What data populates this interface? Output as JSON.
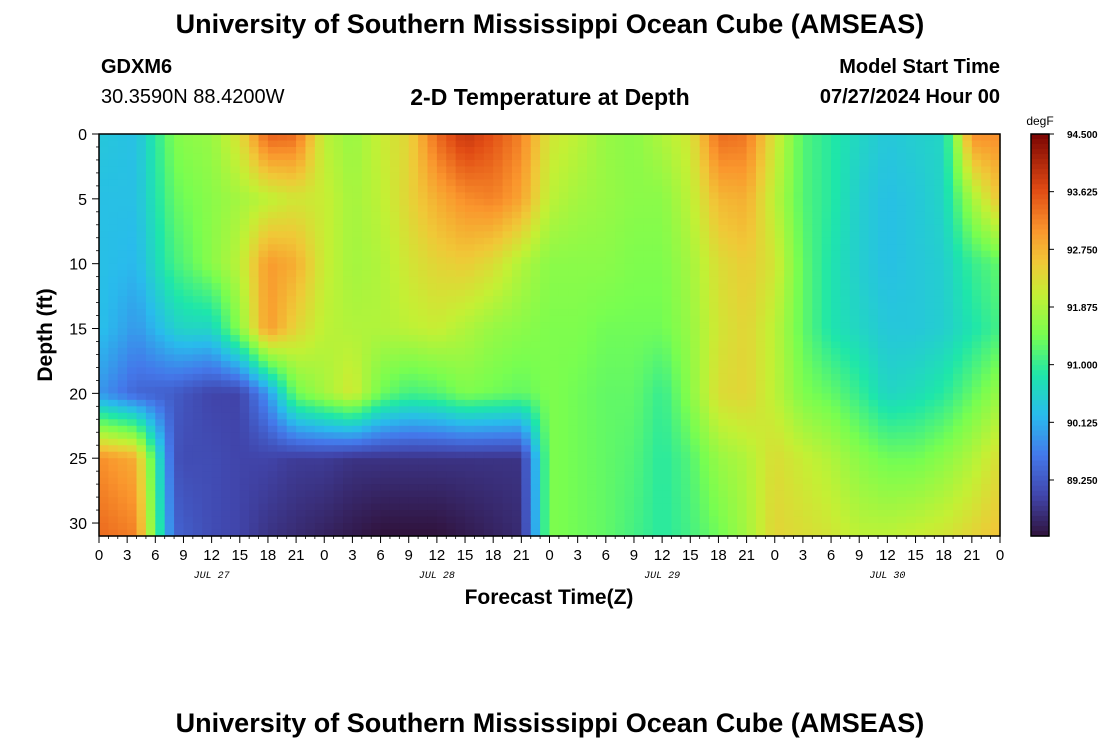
{
  "header": {
    "title": "University of Southern Mississippi Ocean Cube (AMSEAS)",
    "station_name": "GDXM6",
    "station_coords": "30.3590N  88.4200W",
    "subtitle": "2-D Temperature at Depth",
    "model_start_label": "Model Start Time",
    "model_start_value": "07/27/2024 Hour 00"
  },
  "footer": {
    "title": "University of Southern Mississippi Ocean Cube (AMSEAS)"
  },
  "chart_data": {
    "type": "heatmap",
    "title": "2-D Temperature at Depth",
    "xlabel": "Forecast Time(Z)",
    "ylabel": "Depth (ft)",
    "x_unit": "hours from 07/27/2024 00Z",
    "xlim": [
      0,
      96
    ],
    "ylim": [
      0,
      31
    ],
    "y_inverted": true,
    "x_tick_values": [
      0,
      3,
      6,
      9,
      12,
      15,
      18,
      21,
      24,
      27,
      30,
      33,
      36,
      39,
      42,
      45,
      48,
      51,
      54,
      57,
      60,
      63,
      66,
      69,
      72,
      75,
      78,
      81,
      84,
      87,
      90,
      93,
      96
    ],
    "x_tick_labels": [
      "0",
      "3",
      "6",
      "9",
      "12",
      "15",
      "18",
      "21",
      "0",
      "3",
      "6",
      "9",
      "12",
      "15",
      "18",
      "21",
      "0",
      "3",
      "6",
      "9",
      "12",
      "15",
      "18",
      "21",
      "0",
      "3",
      "6",
      "9",
      "12",
      "15",
      "18",
      "21",
      "0"
    ],
    "y_ticks": [
      0,
      5,
      10,
      15,
      20,
      25,
      30
    ],
    "date_labels": [
      {
        "hour": 12,
        "label": "JUL 27"
      },
      {
        "hour": 36,
        "label": "JUL 28"
      },
      {
        "hour": 60,
        "label": "JUL 29"
      },
      {
        "hour": 84,
        "label": "JUL 30"
      }
    ],
    "colorbar": {
      "unit": "degF",
      "min": 88.4,
      "max": 94.5,
      "tick_values": [
        94.5,
        93.625,
        92.75,
        91.875,
        91.0,
        90.125,
        89.25
      ],
      "tick_labels": [
        "94.500",
        "93.625",
        "92.750",
        "91.875",
        "91.000",
        "90.125",
        "89.250"
      ]
    },
    "grid": false,
    "temperature_field": {
      "hours": [
        0,
        4,
        8,
        9,
        12,
        15,
        18,
        21,
        24,
        27,
        30,
        33,
        36,
        39,
        42,
        45,
        48,
        51,
        54,
        57,
        60,
        63,
        66,
        69,
        72,
        75,
        78,
        81,
        84,
        87,
        90,
        93,
        96
      ],
      "depths": [
        0,
        5,
        10,
        15,
        20,
        25,
        31
      ],
      "values": [
        [
          90.4,
          90.3,
          91.5,
          91.6,
          91.7,
          92.3,
          93.5,
          93.4,
          92.0,
          91.7,
          92.1,
          92.4,
          93.4,
          93.9,
          93.6,
          93.2,
          92.2,
          92.0,
          91.7,
          91.6,
          91.9,
          92.2,
          93.4,
          93.3,
          92.2,
          91.2,
          90.9,
          90.6,
          90.4,
          90.5,
          90.6,
          93.1,
          93.1
        ],
        [
          90.3,
          90.3,
          91.3,
          91.4,
          91.6,
          91.8,
          92.0,
          92.2,
          92.1,
          91.8,
          92.0,
          92.4,
          92.8,
          93.1,
          93.2,
          92.9,
          92.0,
          91.8,
          91.7,
          91.6,
          91.6,
          92.0,
          92.7,
          92.8,
          92.0,
          91.2,
          90.9,
          90.5,
          90.3,
          90.4,
          90.6,
          91.8,
          92.6
        ],
        [
          90.3,
          90.2,
          91.1,
          91.2,
          91.6,
          92.0,
          93.0,
          92.8,
          92.1,
          91.8,
          91.9,
          92.2,
          92.4,
          92.5,
          92.3,
          91.9,
          91.6,
          91.6,
          91.6,
          91.5,
          91.5,
          91.8,
          92.3,
          92.5,
          92.2,
          91.3,
          90.8,
          90.5,
          90.3,
          90.4,
          90.5,
          91.0,
          91.3
        ],
        [
          90.3,
          89.9,
          90.5,
          90.6,
          90.6,
          91.6,
          93.0,
          92.4,
          92.0,
          91.9,
          91.9,
          92.0,
          92.1,
          91.9,
          91.7,
          91.6,
          91.5,
          91.5,
          91.4,
          91.4,
          91.4,
          91.7,
          92.2,
          92.4,
          92.0,
          91.3,
          90.8,
          90.6,
          90.4,
          90.4,
          90.5,
          90.8,
          91.1
        ],
        [
          89.9,
          89.4,
          89.3,
          89.2,
          89.0,
          89.0,
          89.9,
          91.4,
          91.8,
          92.2,
          91.4,
          91.1,
          91.2,
          91.5,
          91.4,
          91.3,
          91.5,
          91.4,
          91.3,
          91.3,
          91.0,
          91.6,
          92.3,
          92.4,
          92.0,
          91.5,
          91.3,
          91.0,
          90.6,
          90.7,
          90.9,
          91.3,
          91.7
        ],
        [
          93.1,
          92.8,
          89.2,
          89.1,
          89.1,
          89.0,
          89.0,
          88.9,
          88.9,
          88.8,
          88.8,
          88.8,
          88.8,
          88.8,
          88.8,
          88.8,
          91.5,
          91.4,
          91.3,
          91.2,
          90.9,
          91.2,
          91.7,
          91.9,
          92.3,
          92.1,
          91.9,
          91.6,
          91.4,
          91.4,
          91.6,
          91.9,
          92.3
        ],
        [
          93.4,
          93.2,
          89.4,
          89.3,
          89.1,
          89.0,
          88.8,
          88.7,
          88.6,
          88.5,
          88.4,
          88.4,
          88.4,
          88.5,
          88.6,
          88.7,
          91.5,
          91.4,
          91.3,
          91.1,
          90.9,
          91.1,
          91.4,
          91.8,
          92.4,
          92.3,
          92.2,
          92.0,
          92.0,
          92.1,
          92.2,
          92.4,
          92.6
        ]
      ]
    }
  }
}
